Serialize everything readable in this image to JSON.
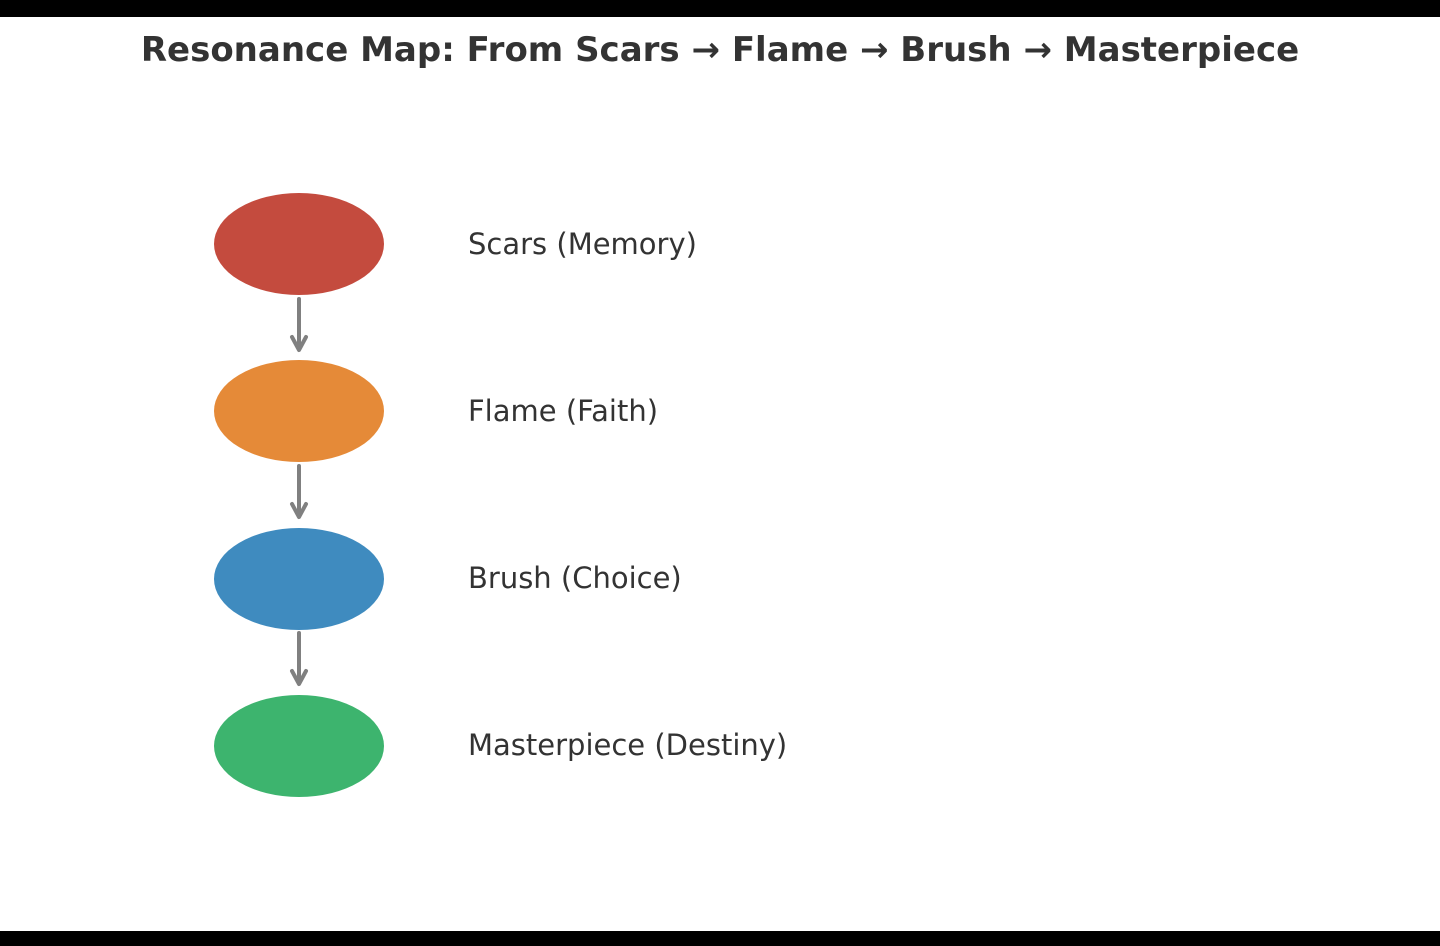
{
  "diagram": {
    "title": "Resonance Map: From Scars → Flame → Brush → Masterpiece",
    "nodes": [
      {
        "label": "Scars (Memory)",
        "color": "#c44b3e"
      },
      {
        "label": "Flame (Faith)",
        "color": "#e58a38"
      },
      {
        "label": "Brush (Choice)",
        "color": "#3f8bbf"
      },
      {
        "label": "Masterpiece (Destiny)",
        "color": "#3db46e"
      }
    ],
    "arrow_color": "#808080"
  }
}
